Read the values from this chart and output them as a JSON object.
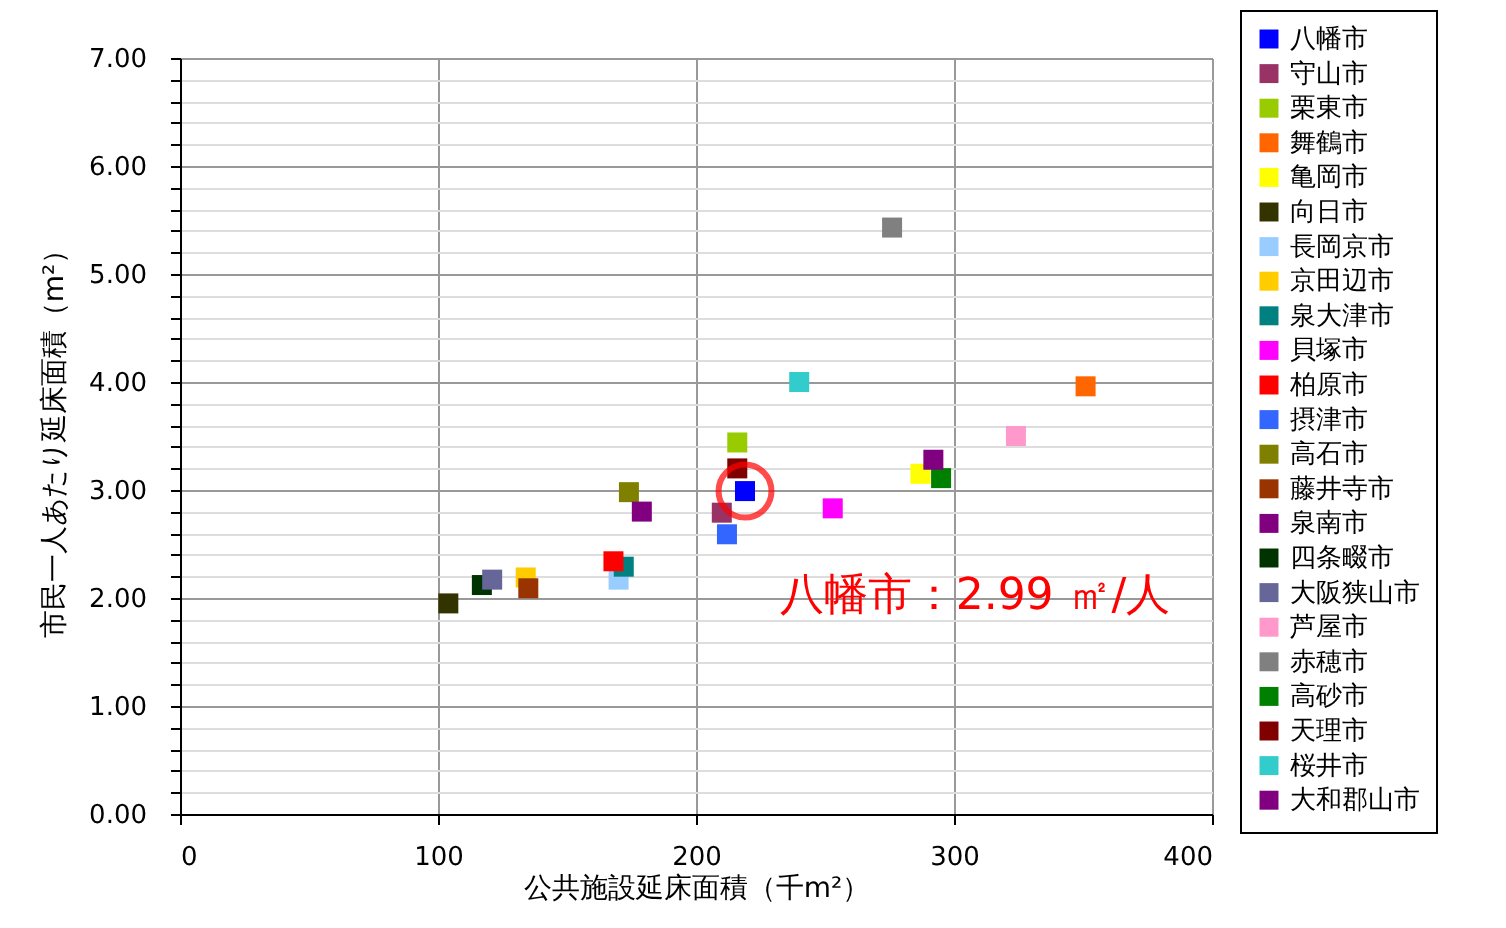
{
  "chart_data": {
    "type": "scatter",
    "xlabel": "公共施設延床面積（千m²）",
    "ylabel": "市民一人あたり延床面積（m²）",
    "xlim": [
      0,
      400
    ],
    "xticks": [
      0,
      100,
      200,
      300,
      400
    ],
    "ylim": [
      0,
      7
    ],
    "yticks": [
      {
        "value": 0,
        "label": "0.00"
      },
      {
        "value": 0.2,
        "label": null
      },
      {
        "value": 0.4,
        "label": null
      },
      {
        "value": 0.6,
        "label": null
      },
      {
        "value": 0.8,
        "label": null
      },
      {
        "value": 1,
        "label": "1.00"
      },
      {
        "value": 1.2,
        "label": null
      },
      {
        "value": 1.4,
        "label": null
      },
      {
        "value": 1.6,
        "label": null
      },
      {
        "value": 1.8,
        "label": null
      },
      {
        "value": 2,
        "label": "2.00"
      },
      {
        "value": 2.2,
        "label": null
      },
      {
        "value": 2.4,
        "label": null
      },
      {
        "value": 2.6,
        "label": null
      },
      {
        "value": 2.8,
        "label": null
      },
      {
        "value": 3,
        "label": "3.00"
      },
      {
        "value": 3.2,
        "label": null
      },
      {
        "value": 3.4,
        "label": null
      },
      {
        "value": 3.6,
        "label": null
      },
      {
        "value": 3.8,
        "label": null
      },
      {
        "value": 4,
        "label": "4.00"
      },
      {
        "value": 4.2,
        "label": null
      },
      {
        "value": 4.4,
        "label": null
      },
      {
        "value": 4.6,
        "label": null
      },
      {
        "value": 4.8,
        "label": null
      },
      {
        "value": 5,
        "label": "5.00"
      },
      {
        "value": 5.2,
        "label": null
      },
      {
        "value": 5.4,
        "label": null
      },
      {
        "value": 5.6,
        "label": null
      },
      {
        "value": 5.8,
        "label": null
      },
      {
        "value": 6,
        "label": "6.00"
      },
      {
        "value": 6.2,
        "label": null
      },
      {
        "value": 6.4,
        "label": null
      },
      {
        "value": 6.6,
        "label": null
      },
      {
        "value": 6.8,
        "label": null
      },
      {
        "value": 7,
        "label": "7.00"
      }
    ],
    "grid": true,
    "legend": "right",
    "marker": "square",
    "annotations": [
      {
        "text": "八幡市：2.99 ㎡/人",
        "x": 219,
        "y": 2.99
      }
    ],
    "series": [
      {
        "name": "八幡市",
        "color": "#0000ff",
        "x": [
          219
        ],
        "values": [
          2.99
        ]
      },
      {
        "name": "守山市",
        "color": "#993366",
        "x": [
          210
        ],
        "values": [
          2.79
        ]
      },
      {
        "name": "栗東市",
        "color": "#99cc00",
        "x": [
          216
        ],
        "values": [
          3.44
        ]
      },
      {
        "name": "舞鶴市",
        "color": "#ff6600",
        "x": [
          351
        ],
        "values": [
          3.96
        ]
      },
      {
        "name": "亀岡市",
        "color": "#ffff00",
        "x": [
          287
        ],
        "values": [
          3.15
        ]
      },
      {
        "name": "向日市",
        "color": "#333300",
        "x": [
          104
        ],
        "values": [
          1.95
        ]
      },
      {
        "name": "長岡京市",
        "color": "#99ccff",
        "x": [
          170
        ],
        "values": [
          2.17
        ]
      },
      {
        "name": "京田辺市",
        "color": "#ffcc00",
        "x": [
          134
        ],
        "values": [
          2.19
        ]
      },
      {
        "name": "泉大津市",
        "color": "#008080",
        "x": [
          172
        ],
        "values": [
          2.29
        ]
      },
      {
        "name": "貝塚市",
        "color": "#ff00ff",
        "x": [
          253
        ],
        "values": [
          2.83
        ]
      },
      {
        "name": "柏原市",
        "color": "#ff0000",
        "x": [
          168
        ],
        "values": [
          2.34
        ]
      },
      {
        "name": "摂津市",
        "color": "#3366ff",
        "x": [
          212
        ],
        "values": [
          2.59
        ]
      },
      {
        "name": "高石市",
        "color": "#808000",
        "x": [
          174
        ],
        "values": [
          2.98
        ]
      },
      {
        "name": "藤井寺市",
        "color": "#993300",
        "x": [
          135
        ],
        "values": [
          2.09
        ]
      },
      {
        "name": "泉南市",
        "color": "#800080",
        "x": [
          179
        ],
        "values": [
          2.8
        ]
      },
      {
        "name": "四条畷市",
        "color": "#003300",
        "x": [
          117
        ],
        "values": [
          2.12
        ]
      },
      {
        "name": "大阪狭山市",
        "color": "#666699",
        "x": [
          121
        ],
        "values": [
          2.17
        ]
      },
      {
        "name": "芦屋市",
        "color": "#ff99cc",
        "x": [
          324
        ],
        "values": [
          3.5
        ]
      },
      {
        "name": "赤穂市",
        "color": "#808080",
        "x": [
          276
        ],
        "values": [
          5.43
        ]
      },
      {
        "name": "高砂市",
        "color": "#008000",
        "x": [
          295
        ],
        "values": [
          3.11
        ]
      },
      {
        "name": "天理市",
        "color": "#800000",
        "x": [
          216
        ],
        "values": [
          3.2
        ]
      },
      {
        "name": "桜井市",
        "color": "#33cccc",
        "x": [
          240
        ],
        "values": [
          4.0
        ]
      },
      {
        "name": "大和郡山市",
        "color": "#800080",
        "x": [
          292
        ],
        "values": [
          3.28
        ]
      }
    ]
  }
}
